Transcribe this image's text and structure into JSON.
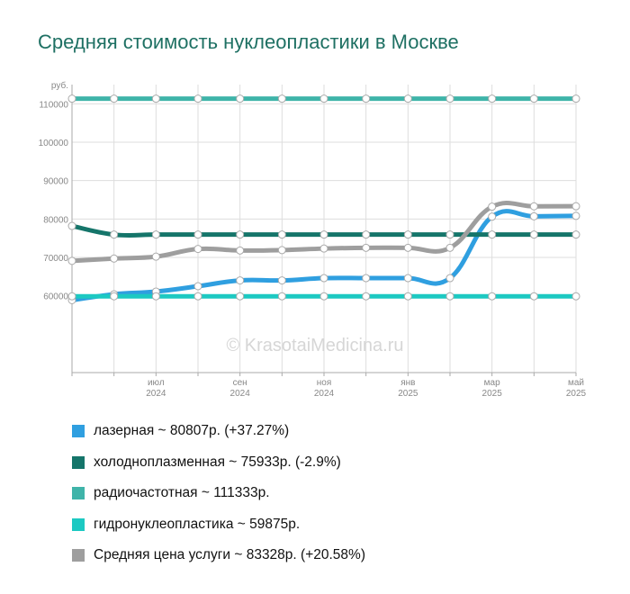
{
  "chart_data": {
    "type": "line",
    "title": "Средняя стоимость нуклеопластики в Москве",
    "ylabel": "руб.",
    "watermark": "© KrasotaiMedicina.ru",
    "ylim": [
      40000,
      115000
    ],
    "y_ticks": [
      "60000",
      "70000",
      "80000",
      "90000",
      "100000",
      "110000"
    ],
    "x_ticks": [
      {
        "month": "июл",
        "year": "2024"
      },
      {
        "month": "сен",
        "year": "2024"
      },
      {
        "month": "ноя",
        "year": "2024"
      },
      {
        "month": "янв",
        "year": "2025"
      },
      {
        "month": "мар",
        "year": "2025"
      },
      {
        "month": "май",
        "year": "2025"
      }
    ],
    "x": [
      "2024-05",
      "2024-06",
      "2024-07",
      "2024-08",
      "2024-09",
      "2024-10",
      "2024-11",
      "2024-12",
      "2025-01",
      "2025-02",
      "2025-03",
      "2025-04",
      "2025-05"
    ],
    "grid": true,
    "series": [
      {
        "name": "лазерная",
        "color": "#2f9fe0",
        "values": [
          58870,
          60400,
          61100,
          62500,
          64000,
          64000,
          64600,
          64600,
          64600,
          64600,
          80600,
          80700,
          80807
        ]
      },
      {
        "name": "холодноплазменная",
        "color": "#15756a",
        "values": [
          78200,
          75933,
          75933,
          75933,
          75933,
          75933,
          75933,
          75933,
          75933,
          75933,
          75933,
          75933,
          75933
        ]
      },
      {
        "name": "радиочастотная",
        "color": "#3fb4a9",
        "values": [
          111333,
          111333,
          111333,
          111333,
          111333,
          111333,
          111333,
          111333,
          111333,
          111333,
          111333,
          111333,
          111333
        ]
      },
      {
        "name": "гидронуклеопластика",
        "color": "#1cc9c2",
        "values": [
          59875,
          59875,
          59875,
          59875,
          59875,
          59875,
          59875,
          59875,
          59875,
          59875,
          59875,
          59875,
          59875
        ]
      },
      {
        "name": "Средняя цена услуги",
        "color": "#9e9e9e",
        "values": [
          69100,
          69700,
          70200,
          72200,
          71800,
          71900,
          72300,
          72500,
          72500,
          72500,
          83200,
          83300,
          83328
        ]
      }
    ]
  },
  "legend": [
    {
      "label": "лазерная ~ 80807р. (+37.27%)",
      "color": "#2f9fe0"
    },
    {
      "label": "холодноплазменная ~ 75933р. (-2.9%)",
      "color": "#15756a"
    },
    {
      "label": "радиочастотная ~ 111333р.",
      "color": "#3fb4a9"
    },
    {
      "label": "гидронуклеопластика ~ 59875р.",
      "color": "#1cc9c2"
    },
    {
      "label": "Средняя цена услуги ~ 83328р. (+20.58%)",
      "color": "#9e9e9e"
    }
  ]
}
